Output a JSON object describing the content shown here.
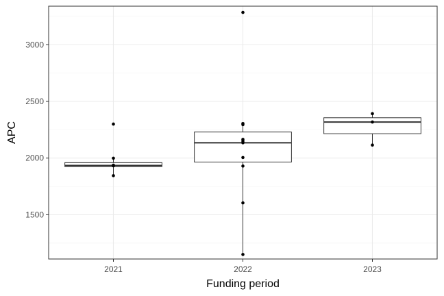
{
  "chart_data": {
    "type": "box",
    "title": "",
    "xlabel": "Funding period",
    "ylabel": "APC",
    "ylim": [
      1110,
      3340
    ],
    "yticks": [
      1500,
      2000,
      2500,
      3000
    ],
    "ytick_labels": [
      "1500",
      "2000",
      "2500",
      "3000"
    ],
    "grid": true,
    "categories": [
      "2021",
      "2022",
      "2023"
    ],
    "boxes": [
      {
        "category": "2021",
        "min": 1845,
        "q1": 1925,
        "median": 1935,
        "q3": 1960,
        "max": 1999
      },
      {
        "category": "2022",
        "min": 1150,
        "q1": 1965,
        "median": 2135,
        "q3": 2230,
        "max": 2305
      },
      {
        "category": "2023",
        "min": 2115,
        "q1": 2215,
        "median": 2318,
        "q3": 2356,
        "max": 2392
      }
    ],
    "points": [
      {
        "category": "2021",
        "values": [
          2300,
          1999,
          1938,
          1932,
          1845
        ]
      },
      {
        "category": "2022",
        "values": [
          3285,
          2305,
          2295,
          2165,
          2150,
          2135,
          2005,
          1930,
          1605,
          1150
        ]
      },
      {
        "category": "2023",
        "values": [
          2392,
          2318,
          2115
        ]
      }
    ]
  }
}
